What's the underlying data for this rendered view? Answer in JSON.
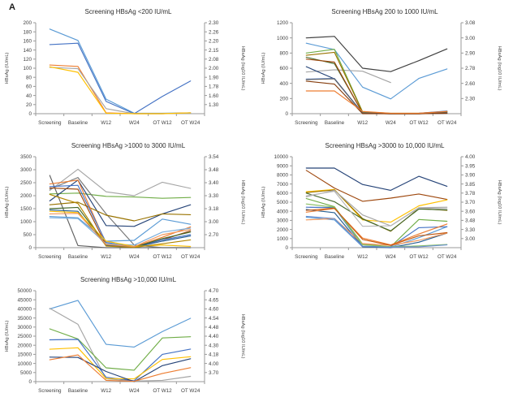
{
  "figure_label": "A",
  "axis": {
    "left_label": "HBsAg (IU/mL)",
    "right_label": "HBsAg (log10 IU/mL)"
  },
  "chart_data": [
    {
      "type": "line",
      "title": "Screening HBsAg <200 IU/mL",
      "xlabel": "",
      "ylabel": "HBsAg (IU/mL)",
      "ylabel_right": "HBsAg (log10 IU/mL)",
      "categories": [
        "Screening",
        "Baseline",
        "W12",
        "W24",
        "OT W12",
        "OT W24"
      ],
      "ylim": [
        0,
        200
      ],
      "left_ticks": [
        0,
        20,
        40,
        60,
        80,
        100,
        120,
        140,
        160,
        180,
        200
      ],
      "right_ticks": [
        "2.30",
        "2.26",
        "2.20",
        "2.15",
        "2.08",
        "2.00",
        "1.90",
        "1.78",
        "1.60",
        "1.30"
      ],
      "grid": false,
      "legend": "none",
      "series": [
        {
          "color": "#5B9BD5",
          "values": [
            186,
            161,
            32,
            1,
            1,
            2
          ]
        },
        {
          "color": "#4472C4",
          "values": [
            152,
            155,
            27,
            0,
            38,
            72
          ]
        },
        {
          "color": "#ED7D31",
          "values": [
            107,
            104,
            2,
            0,
            0,
            2
          ]
        },
        {
          "color": "#A5A5A5",
          "values": [
            102,
            99,
            11,
            0,
            0,
            1
          ]
        },
        {
          "color": "#FFC000",
          "values": [
            103,
            91,
            1,
            0,
            0,
            2
          ]
        }
      ]
    },
    {
      "type": "line",
      "title": "Screening HBsAg 200 to 1000 IU/mL",
      "xlabel": "",
      "ylabel": "HBsAg (IU/mL)",
      "ylabel_right": "HBsAg (log10 IU/mL)",
      "categories": [
        "Screening",
        "Baseline",
        "W12",
        "W24",
        "OT W12",
        "OT W24"
      ],
      "ylim": [
        0,
        1200
      ],
      "left_ticks": [
        0,
        200,
        400,
        600,
        800,
        1000,
        1200
      ],
      "right_ticks": [
        "3.08",
        "3.00",
        "2.90",
        "2.78",
        "2.60",
        "2.30"
      ],
      "grid": false,
      "legend": "none",
      "series": [
        {
          "color": "#404040",
          "values": [
            1000,
            1020,
            600,
            555,
            700,
            855
          ]
        },
        {
          "color": "#5B9BD5",
          "values": [
            930,
            845,
            350,
            195,
            465,
            590
          ]
        },
        {
          "color": "#A5A5A5",
          "values": [
            550,
            580,
            560,
            410,
            null,
            null
          ]
        },
        {
          "color": "#70AD47",
          "values": [
            800,
            850,
            25,
            5,
            5,
            30
          ]
        },
        {
          "color": "#43682B",
          "values": [
            745,
            660,
            10,
            0,
            0,
            20
          ]
        },
        {
          "color": "#9E480E",
          "values": [
            720,
            680,
            5,
            0,
            0,
            10
          ]
        },
        {
          "color": "#997300",
          "values": [
            770,
            810,
            20,
            0,
            0,
            25
          ]
        },
        {
          "color": "#264478",
          "values": [
            620,
            460,
            5,
            0,
            0,
            5
          ]
        },
        {
          "color": "#4472C4",
          "values": [
            455,
            465,
            10,
            0,
            5,
            35
          ]
        },
        {
          "color": "#636363",
          "values": [
            450,
            460,
            5,
            0,
            0,
            15
          ]
        },
        {
          "color": "#843C0C",
          "values": [
            430,
            390,
            0,
            0,
            0,
            5
          ]
        },
        {
          "color": "#ED7D31",
          "values": [
            300,
            300,
            30,
            5,
            5,
            30
          ]
        }
      ]
    },
    {
      "type": "line",
      "title": "Screening HBsAg >1000 to 3000 IU/mL",
      "xlabel": "",
      "ylabel": "HBsAg (IU/mL)",
      "ylabel_right": "HBsAg (log10 IU/mL)",
      "categories": [
        "Screening",
        "Baseline",
        "W12",
        "W24",
        "OT W12",
        "OT W24"
      ],
      "ylim": [
        0,
        3500
      ],
      "left_ticks": [
        0,
        500,
        1000,
        1500,
        2000,
        2500,
        3000,
        3500
      ],
      "right_ticks": [
        "3.54",
        "3.48",
        "3.40",
        "3.30",
        "3.18",
        "3.00",
        "2.70"
      ],
      "grid": false,
      "legend": "none",
      "series": [
        {
          "color": "#A5A5A5",
          "values": [
            2200,
            3020,
            2150,
            2000,
            2520,
            2280
          ]
        },
        {
          "color": "#70AD47",
          "values": [
            2070,
            2100,
            1975,
            1950,
            1900,
            1930
          ]
        },
        {
          "color": "#636363",
          "values": [
            2780,
            80,
            0,
            0,
            0,
            0
          ]
        },
        {
          "color": "#757575",
          "values": [
            2250,
            2700,
            1300,
            100,
            0,
            0
          ]
        },
        {
          "color": "#264478",
          "values": [
            1800,
            2600,
            850,
            820,
            1300,
            1650
          ]
        },
        {
          "color": "#997300",
          "values": [
            1650,
            1750,
            1250,
            1030,
            1300,
            1270
          ]
        },
        {
          "color": "#ED7D31",
          "values": [
            2450,
            2600,
            150,
            30,
            400,
            800
          ]
        },
        {
          "color": "#9E480E",
          "values": [
            2300,
            2250,
            100,
            20,
            300,
            650
          ]
        },
        {
          "color": "#4472C4",
          "values": [
            2350,
            2400,
            200,
            30,
            300,
            500
          ]
        },
        {
          "color": "#5B9BD5",
          "values": [
            1200,
            1150,
            250,
            280,
            1100,
            900
          ]
        },
        {
          "color": "#7CAFDD",
          "values": [
            1150,
            1120,
            150,
            100,
            600,
            750
          ]
        },
        {
          "color": "#43682B",
          "values": [
            1500,
            1550,
            100,
            20,
            350,
            600
          ]
        },
        {
          "color": "#255E91",
          "values": [
            1450,
            1400,
            80,
            10,
            250,
            450
          ]
        },
        {
          "color": "#FFC000",
          "values": [
            1400,
            1350,
            250,
            50,
            100,
            50
          ]
        },
        {
          "color": "#B38600",
          "values": [
            2050,
            1700,
            60,
            10,
            150,
            300
          ]
        },
        {
          "color": "#F1975A",
          "values": [
            1300,
            1320,
            120,
            40,
            500,
            700
          ]
        }
      ]
    },
    {
      "type": "line",
      "title": "Screening HBsAg >3000 to 10,000 IU/mL",
      "xlabel": "",
      "ylabel": "HBsAg (IU/mL)",
      "ylabel_right": "HBsAg (log10 IU/mL)",
      "categories": [
        "Screening",
        "Baseline",
        "W12",
        "W24",
        "OT W12",
        "OT W24"
      ],
      "ylim": [
        0,
        10000
      ],
      "left_ticks": [
        0,
        1000,
        2000,
        3000,
        4000,
        5000,
        6000,
        7000,
        8000,
        9000,
        10000
      ],
      "right_ticks": [
        "4.00",
        "3.95",
        "3.90",
        "3.85",
        "3.78",
        "3.70",
        "3.60",
        "3.48",
        "3.30",
        "3.00"
      ],
      "grid": false,
      "legend": "none",
      "series": [
        {
          "color": "#264478",
          "values": [
            8750,
            8750,
            6950,
            6300,
            7850,
            6750
          ]
        },
        {
          "color": "#9E480E",
          "values": [
            8500,
            6550,
            5100,
            5450,
            5900,
            5300
          ]
        },
        {
          "color": "#FFC000",
          "values": [
            6150,
            6400,
            3050,
            2800,
            4600,
            5250
          ]
        },
        {
          "color": "#997300",
          "values": [
            6050,
            6350,
            3200,
            1800,
            4300,
            4100
          ]
        },
        {
          "color": "#43682B",
          "values": [
            6000,
            5050,
            3150,
            1850,
            4250,
            4150
          ]
        },
        {
          "color": "#A5A5A5",
          "values": [
            5600,
            6300,
            3600,
            2400,
            4400,
            4450
          ]
        },
        {
          "color": "#B7B7B7",
          "values": [
            5700,
            6200,
            2350,
            2400,
            4350,
            4300
          ]
        },
        {
          "color": "#70AD47",
          "values": [
            5400,
            4500,
            400,
            100,
            3100,
            2900
          ]
        },
        {
          "color": "#5B9BD5",
          "values": [
            3350,
            3050,
            100,
            50,
            1100,
            2300
          ]
        },
        {
          "color": "#4472C4",
          "values": [
            4450,
            4400,
            150,
            100,
            2200,
            2300
          ]
        },
        {
          "color": "#255E91",
          "values": [
            4200,
            3850,
            100,
            0,
            600,
            1600
          ]
        },
        {
          "color": "#ED7D31",
          "values": [
            3900,
            4300,
            1050,
            300,
            1500,
            2600
          ]
        },
        {
          "color": "#F1975A",
          "values": [
            3050,
            3200,
            450,
            250,
            800,
            1600
          ]
        },
        {
          "color": "#8CC168",
          "values": [
            4800,
            4450,
            300,
            100,
            200,
            350
          ]
        },
        {
          "color": "#698ED0",
          "values": [
            3450,
            3200,
            150,
            50,
            100,
            300
          ]
        },
        {
          "color": "#C55A11",
          "values": [
            4100,
            4350,
            900,
            250,
            1300,
            1650
          ]
        }
      ]
    },
    {
      "type": "line",
      "title": "Screening HBsAg >10,000 IU/mL",
      "xlabel": "",
      "ylabel": "HBsAg (IU/mL)",
      "ylabel_right": "HBsAg (log10 IU/mL)",
      "categories": [
        "Screening",
        "Baseline",
        "W12",
        "W24",
        "OT W12",
        "OT W24"
      ],
      "ylim": [
        0,
        50000
      ],
      "left_ticks": [
        0,
        5000,
        10000,
        15000,
        20000,
        25000,
        30000,
        35000,
        40000,
        45000,
        50000
      ],
      "right_ticks": [
        "4.70",
        "4.65",
        "4.60",
        "4.54",
        "4.48",
        "4.40",
        "4.30",
        "4.18",
        "4.00",
        "3.70"
      ],
      "grid": false,
      "legend": "none",
      "series": [
        {
          "color": "#5B9BD5",
          "values": [
            40000,
            44700,
            20500,
            19000,
            27500,
            34800
          ]
        },
        {
          "color": "#A5A5A5",
          "values": [
            40300,
            31500,
            1500,
            300,
            700,
            2900
          ]
        },
        {
          "color": "#70AD47",
          "values": [
            29000,
            23500,
            7600,
            6300,
            24000,
            24700
          ]
        },
        {
          "color": "#4472C4",
          "values": [
            23000,
            23200,
            2400,
            500,
            15000,
            17900
          ]
        },
        {
          "color": "#FFC000",
          "values": [
            17800,
            18600,
            1700,
            1500,
            12200,
            13700
          ]
        },
        {
          "color": "#264478",
          "values": [
            13500,
            13300,
            5600,
            0,
            8800,
            12600
          ]
        },
        {
          "color": "#ED7D31",
          "values": [
            12000,
            14700,
            700,
            200,
            4500,
            7700
          ]
        }
      ]
    }
  ]
}
